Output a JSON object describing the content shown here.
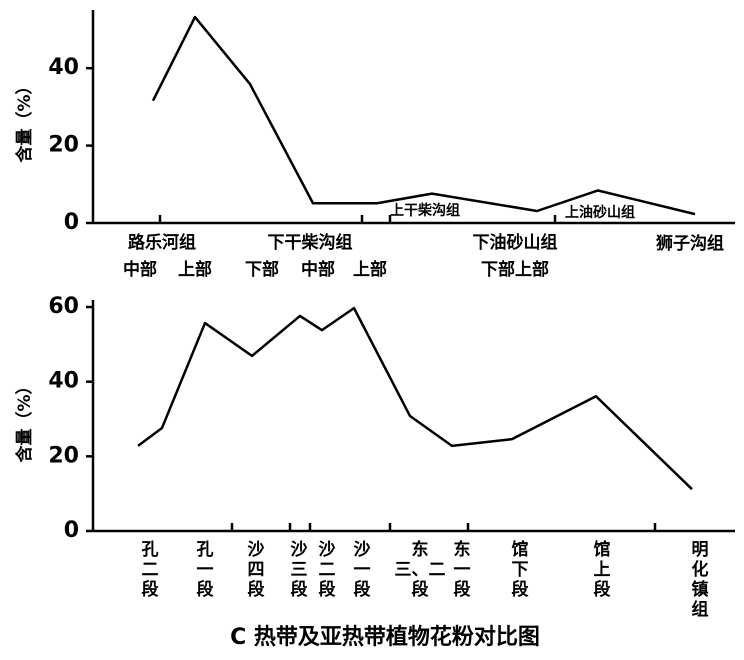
{
  "chart_data": [
    {
      "type": "line",
      "y_label": "含量（%）",
      "groups": [
        "路乐河组",
        "下干柴沟组",
        "上干柴沟组",
        "下油砂山组",
        "上油砂山组",
        "狮子沟组"
      ],
      "categories": [
        "中部",
        "上部",
        "下部",
        "中部",
        "上部",
        null,
        "下部上部",
        null,
        null
      ],
      "values": [
        31.6,
        53.2,
        35.9,
        5.1,
        5.1,
        7.6,
        3.1,
        8.4,
        2.3
      ],
      "color": "#000000",
      "ylim": [
        0,
        54
      ],
      "yticks": [
        0,
        20,
        40
      ]
    },
    {
      "type": "line",
      "y_label": "含量（%）",
      "categories": [
        "孔二段",
        null,
        "孔一段",
        "沙四段",
        "沙三段",
        "沙二段",
        "沙一段",
        "东三、二段",
        "东一段",
        "馆下段",
        "馆上段",
        "明化镇组"
      ],
      "values": [
        22.8,
        27.6,
        55.7,
        46.9,
        57.6,
        53.8,
        59.7,
        30.8,
        22.8,
        24.6,
        36.1,
        11.2
      ],
      "color": "#000000",
      "ylim": [
        0,
        60
      ],
      "yticks": [
        0,
        20,
        40,
        60
      ]
    }
  ],
  "caption": "C 热带及亚热带植物花粉对比图"
}
